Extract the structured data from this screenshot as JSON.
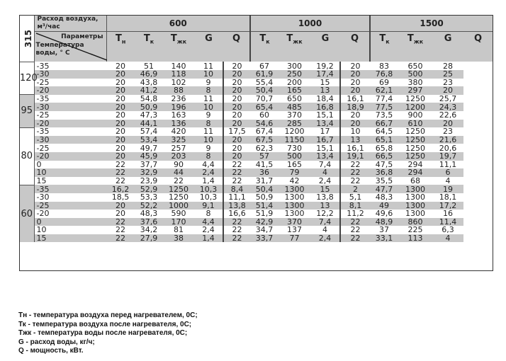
{
  "table": {
    "size_label": "315",
    "airflow_label": "Расход воздуха, м³/час",
    "params_label": "Параметры",
    "water_temp_label": "Температура воды, ° С",
    "airflows": [
      "600",
      "1000",
      "1500"
    ],
    "columns": [
      {
        "main": "T",
        "sub": "н"
      },
      {
        "main": "T",
        "sub": "к"
      },
      {
        "main": "T",
        "sub": "жк"
      },
      {
        "main": "G",
        "sub": ""
      },
      {
        "main": "Q",
        "sub": ""
      },
      {
        "main": "T",
        "sub": "к"
      },
      {
        "main": "T",
        "sub": "жк"
      },
      {
        "main": "G",
        "sub": ""
      },
      {
        "main": "Q",
        "sub": ""
      },
      {
        "main": "T",
        "sub": "к"
      },
      {
        "main": "T",
        "sub": "жк"
      },
      {
        "main": "G",
        "sub": ""
      },
      {
        "main": "Q",
        "sub": ""
      }
    ],
    "groups": [
      {
        "water_temp": "120",
        "rows": [
          [
            "-35",
            "20",
            "51",
            "140",
            "11",
            "20",
            "67",
            "300",
            "19,2",
            "20",
            "83",
            "650",
            "28"
          ],
          [
            "-30",
            "20",
            "46,9",
            "118",
            "10",
            "20",
            "61,9",
            "250",
            "17,4",
            "20",
            "76,8",
            "500",
            "25"
          ],
          [
            "-25",
            "20",
            "43,8",
            "102",
            "9",
            "20",
            "55,4",
            "200",
            "15",
            "20",
            "69",
            "380",
            "23"
          ],
          [
            "-20",
            "20",
            "41,2",
            "88",
            "8",
            "20",
            "50,4",
            "165",
            "13",
            "20",
            "62,1",
            "297",
            "20"
          ]
        ]
      },
      {
        "water_temp": "95",
        "rows": [
          [
            "-35",
            "20",
            "54,8",
            "236",
            "11",
            "20",
            "70,7",
            "650",
            "18,4",
            "16,1",
            "77,4",
            "1250",
            "25,7"
          ],
          [
            "-30",
            "20",
            "50,9",
            "196",
            "10",
            "20",
            "65,4",
            "485",
            "16,8",
            "18,9",
            "77,5",
            "1200",
            "24,3"
          ],
          [
            "-25",
            "20",
            "47,3",
            "163",
            "9",
            "20",
            "60",
            "370",
            "15,1",
            "20",
            "73,5",
            "900",
            "22,6"
          ],
          [
            "-20",
            "20",
            "44,1",
            "136",
            "8",
            "20",
            "54,6",
            "285",
            "13,4",
            "20",
            "66,7",
            "610",
            "20"
          ]
        ]
      },
      {
        "water_temp": "80",
        "rows": [
          [
            "-35",
            "20",
            "57,4",
            "420",
            "11",
            "17,5",
            "67,4",
            "1200",
            "17",
            "10",
            "64,5",
            "1250",
            "23"
          ],
          [
            "-30",
            "20",
            "53,4",
            "325",
            "10",
            "20",
            "67,5",
            "1150",
            "16,7",
            "13",
            "65,1",
            "1250",
            "21,6"
          ],
          [
            "-25",
            "20",
            "49,7",
            "257",
            "9",
            "20",
            "62,3",
            "730",
            "15,1",
            "16,1",
            "65,8",
            "1250",
            "20,6"
          ],
          [
            "-20",
            "20",
            "45,9",
            "203",
            "8",
            "20",
            "57",
            "500",
            "13,4",
            "19,1",
            "66,5",
            "1250",
            "19,7"
          ],
          [
            "0",
            "22",
            "37,7",
            "90",
            "4,4",
            "22",
            "41,5",
            "165",
            "7,4",
            "22",
            "47,5",
            "294",
            "11,1"
          ],
          [
            "10",
            "22",
            "32,9",
            "44",
            "2,4",
            "22",
            "36",
            "79",
            "4",
            "22",
            "36,8",
            "294",
            "6"
          ],
          [
            "15",
            "22",
            "23,9",
            "22",
            "1,4",
            "22",
            "31,7",
            "42",
            "2,4",
            "22",
            "35,5",
            "68",
            "4"
          ]
        ]
      },
      {
        "water_temp": "60",
        "rows": [
          [
            "-35",
            "16,2",
            "52,9",
            "1250",
            "10,3",
            "8,4",
            "50,4",
            "1300",
            "15",
            "2",
            "47,7",
            "1300",
            "19"
          ],
          [
            "-30",
            "18,5",
            "53,3",
            "1250",
            "10,3",
            "11,1",
            "50,9",
            "1300",
            "13,8",
            "5,1",
            "48,3",
            "1300",
            "18,1"
          ],
          [
            "-25",
            "20",
            "52,2",
            "1000",
            "9,1",
            "13,8",
            "51,4",
            "1300",
            "13",
            "8,1",
            "49",
            "1300",
            "17,2"
          ],
          [
            "-20",
            "20",
            "48,3",
            "590",
            "8",
            "16,6",
            "51,9",
            "1300",
            "12,2",
            "11,2",
            "49,6",
            "1300",
            "16"
          ],
          [
            "0",
            "22",
            "37,6",
            "170",
            "4,4",
            "22",
            "42,9",
            "370",
            "7,4",
            "22",
            "48,9",
            "860",
            "11,4"
          ],
          [
            "10",
            "22",
            "34,2",
            "81",
            "2,4",
            "22",
            "34,7",
            "137",
            "4",
            "22",
            "37",
            "225",
            "6,3"
          ],
          [
            "15",
            "22",
            "27,9",
            "38",
            "1,4",
            "22",
            "33,7",
            "77",
            "2,4",
            "22",
            "33,1",
            "113",
            "4"
          ]
        ]
      }
    ]
  },
  "legend": [
    "Тн - температура воздуха перед нагревателем, 0С;",
    "Тк - температура воздуха после нагревателя, 0С;",
    "Тжк - температура воды после нагревателя, 0С;",
    "G - расход воды, кг/ч;",
    "Q - мощность, кВт."
  ],
  "colors": {
    "header_bg": "#c8c8c8",
    "stripe_bg": "#c8c8c8"
  }
}
